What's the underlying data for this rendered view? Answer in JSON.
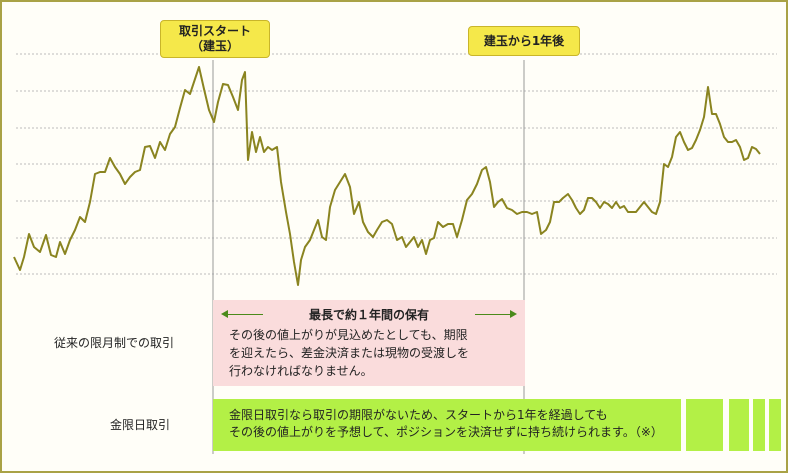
{
  "callouts": {
    "start_line1": "取引スタート",
    "start_line2": "（建玉）",
    "one_year": "建玉から1年後"
  },
  "rows": {
    "conventional_label": "従来の限月制での取引",
    "unlimited_label": "金限日取引"
  },
  "pink_box": {
    "title": "最長で約１年間の保有",
    "line1": "その後の値上がりが見込めたとしても、期限",
    "line2": "を迎えたら、差金決済または現物の受渡しを",
    "line3": "行わなければなりません。"
  },
  "green_box": {
    "line1": "金限日取引なら取引の期限がないため、スタートから1年を経過しても",
    "line2": "その後の値上がりを予想して、ポジションを決済せずに持ち続けられます。（※）"
  },
  "colors": {
    "line": "#8a8420",
    "border": "#a9a246",
    "callout": "#f5e84a",
    "pink": "#fadcdc",
    "green": "#b3f046",
    "arrow": "#4a8a1a"
  }
}
